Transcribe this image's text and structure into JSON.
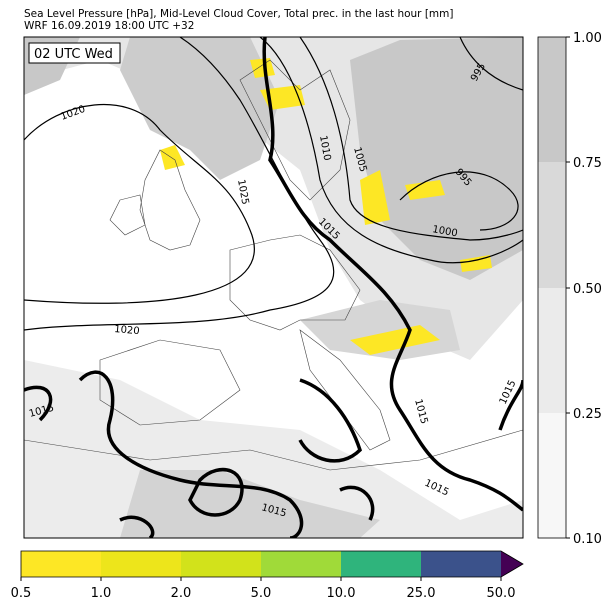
{
  "header": {
    "line1": "Sea Level Pressure [hPa], Mid-Level Cloud Cover, Total prec. in the last hour [mm]",
    "line2": "WRF 16.09.2019 18:00 UTC +32"
  },
  "map": {
    "time_label": "02 UTC Wed",
    "contour_labels": [
      "1020",
      "1025",
      "1010",
      "1005",
      "995",
      "995",
      "1000",
      "1015",
      "1020",
      "1015",
      "1015",
      "1015",
      "1015",
      "1015"
    ]
  },
  "cloud_colorbar": {
    "ticks": [
      "1.00",
      "0.75",
      "0.50",
      "0.25",
      "0.10"
    ]
  },
  "precip_colorbar": {
    "ticks": [
      "0.5",
      "1.0",
      "2.0",
      "5.0",
      "10.0",
      "25.0",
      "50.0"
    ]
  }
}
